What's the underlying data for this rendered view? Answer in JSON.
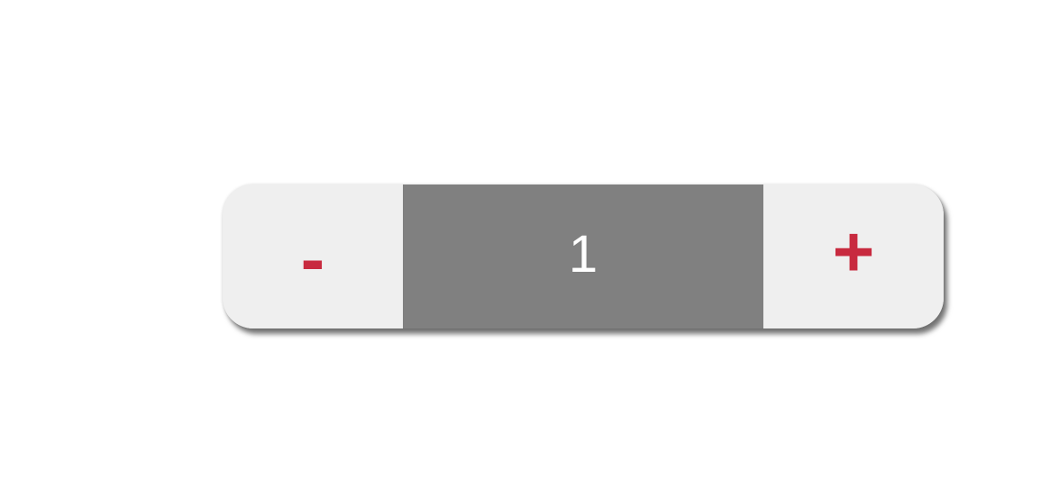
{
  "stepper": {
    "decrement_label": "-",
    "increment_label": "+",
    "value": "1"
  },
  "colors": {
    "accent": "#c82a3f",
    "button_bg": "#efefef",
    "value_bg": "#808080",
    "value_text": "#ffffff"
  }
}
